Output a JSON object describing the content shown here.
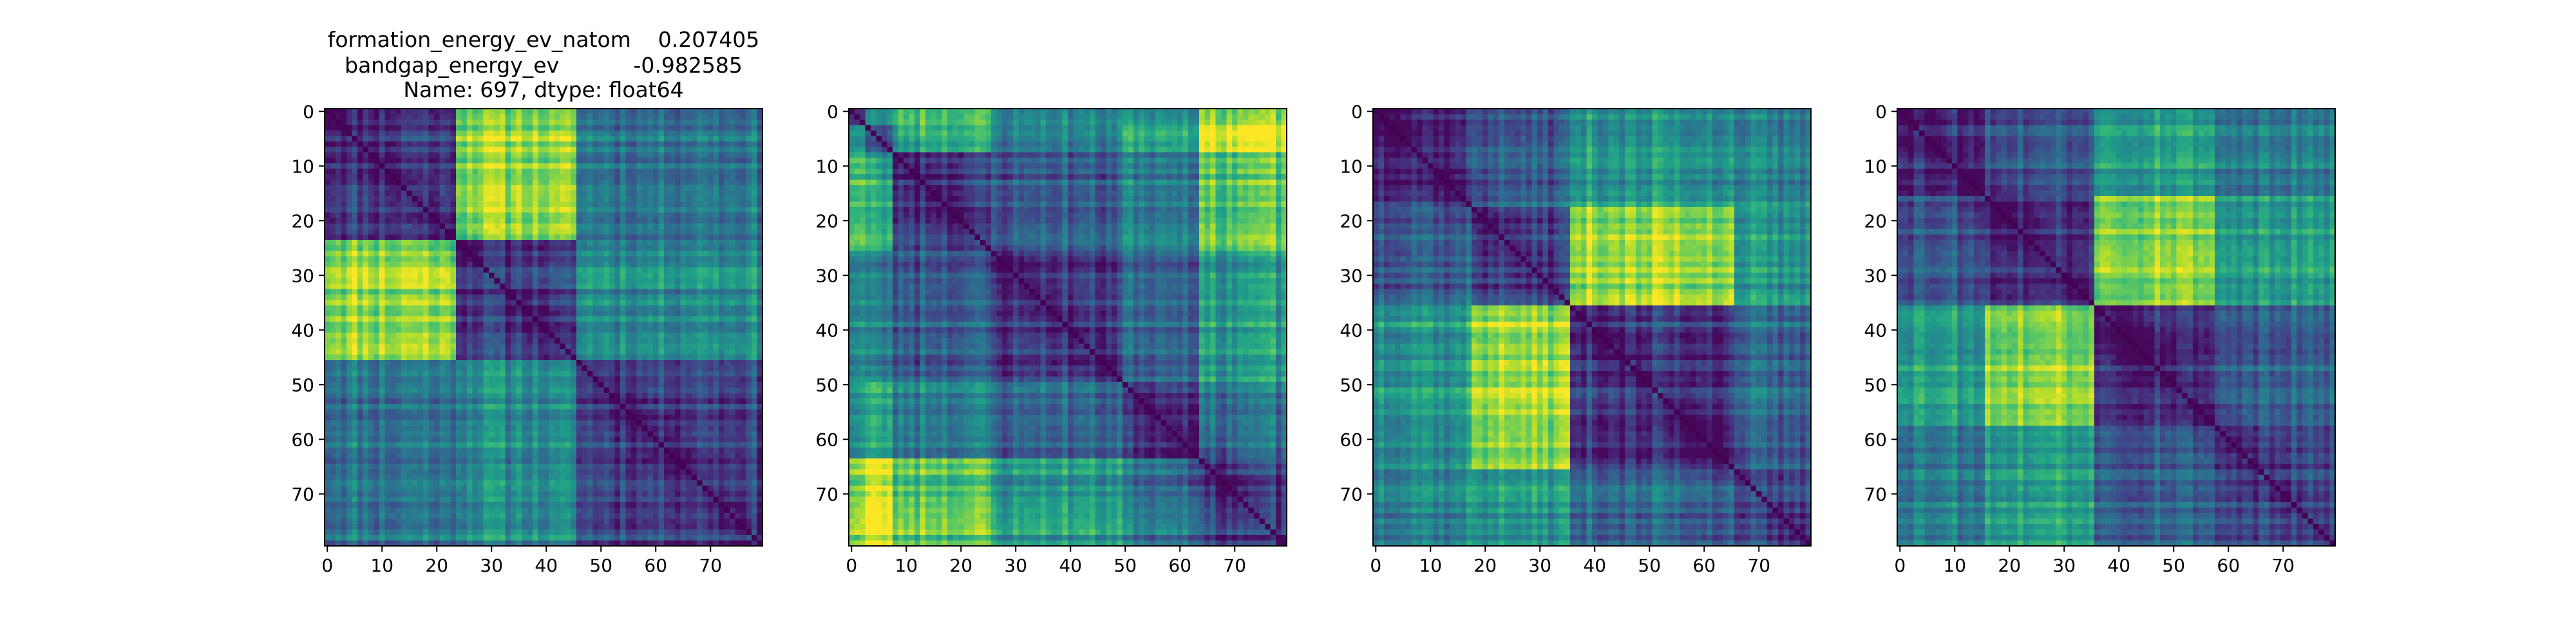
{
  "figure": {
    "title_lines": [
      "formation_energy_ev_natom    0.207405",
      "bandgap_energy_ev           -0.982585",
      "Name: 697, dtype: float64"
    ],
    "colormap": "viridis"
  },
  "chart_data": [
    {
      "type": "heatmap",
      "panel": 1,
      "title": "formation_energy_ev_natom    0.207405\nbandgap_energy_ev           -0.982585\nName: 697, dtype: float64",
      "size": 80,
      "x_ticks": [
        0,
        10,
        20,
        30,
        40,
        50,
        60,
        70
      ],
      "y_ticks": [
        0,
        10,
        20,
        30,
        40,
        50,
        60,
        70
      ],
      "xlim": [
        0,
        79
      ],
      "ylim": [
        79,
        0
      ],
      "diagonal": 0,
      "groups": [
        {
          "start": 0,
          "end": 24
        },
        {
          "start": 24,
          "end": 46
        },
        {
          "start": 46,
          "end": 80
        }
      ],
      "group_values": [
        [
          0.18,
          0.85,
          0.4
        ],
        [
          0.85,
          0.2,
          0.5
        ],
        [
          0.4,
          0.5,
          0.22
        ]
      ],
      "seed": 11
    },
    {
      "type": "heatmap",
      "panel": 2,
      "size": 80,
      "x_ticks": [
        0,
        10,
        20,
        30,
        40,
        50,
        60,
        70
      ],
      "y_ticks": [
        0,
        10,
        20,
        30,
        40,
        50,
        60,
        70
      ],
      "xlim": [
        0,
        79
      ],
      "ylim": [
        79,
        0
      ],
      "diagonal": 0,
      "groups": [
        {
          "start": 0,
          "end": 3
        },
        {
          "start": 3,
          "end": 8
        },
        {
          "start": 8,
          "end": 26
        },
        {
          "start": 26,
          "end": 50
        },
        {
          "start": 50,
          "end": 64
        },
        {
          "start": 64,
          "end": 80
        }
      ],
      "group_values": [
        [
          0.3,
          0.55,
          0.75,
          0.5,
          0.55,
          0.85
        ],
        [
          0.55,
          0.25,
          0.6,
          0.4,
          0.6,
          0.95
        ],
        [
          0.75,
          0.6,
          0.2,
          0.3,
          0.45,
          0.75
        ],
        [
          0.5,
          0.4,
          0.3,
          0.18,
          0.35,
          0.55
        ],
        [
          0.55,
          0.6,
          0.45,
          0.35,
          0.2,
          0.4
        ],
        [
          0.85,
          0.95,
          0.75,
          0.55,
          0.4,
          0.2
        ]
      ],
      "seed": 23
    },
    {
      "type": "heatmap",
      "panel": 3,
      "size": 80,
      "x_ticks": [
        0,
        10,
        20,
        30,
        40,
        50,
        60,
        70
      ],
      "y_ticks": [
        0,
        10,
        20,
        30,
        40,
        50,
        60,
        70
      ],
      "xlim": [
        0,
        79
      ],
      "ylim": [
        79,
        0
      ],
      "diagonal": 0,
      "groups": [
        {
          "start": 0,
          "end": 18
        },
        {
          "start": 18,
          "end": 36
        },
        {
          "start": 36,
          "end": 66
        },
        {
          "start": 66,
          "end": 80
        }
      ],
      "group_values": [
        [
          0.18,
          0.3,
          0.55,
          0.45
        ],
        [
          0.3,
          0.18,
          0.85,
          0.5
        ],
        [
          0.55,
          0.85,
          0.18,
          0.32
        ],
        [
          0.45,
          0.5,
          0.32,
          0.2
        ]
      ],
      "seed": 37
    },
    {
      "type": "heatmap",
      "panel": 4,
      "size": 80,
      "x_ticks": [
        0,
        10,
        20,
        30,
        40,
        50,
        60,
        70
      ],
      "y_ticks": [
        0,
        10,
        20,
        30,
        40,
        50,
        60,
        70
      ],
      "xlim": [
        0,
        79
      ],
      "ylim": [
        79,
        0
      ],
      "diagonal": 0,
      "groups": [
        {
          "start": 0,
          "end": 16
        },
        {
          "start": 16,
          "end": 36
        },
        {
          "start": 36,
          "end": 58
        },
        {
          "start": 58,
          "end": 80
        }
      ],
      "group_values": [
        [
          0.18,
          0.3,
          0.6,
          0.42
        ],
        [
          0.3,
          0.18,
          0.85,
          0.55
        ],
        [
          0.6,
          0.85,
          0.18,
          0.3
        ],
        [
          0.42,
          0.55,
          0.3,
          0.18
        ]
      ],
      "seed": 53
    }
  ]
}
